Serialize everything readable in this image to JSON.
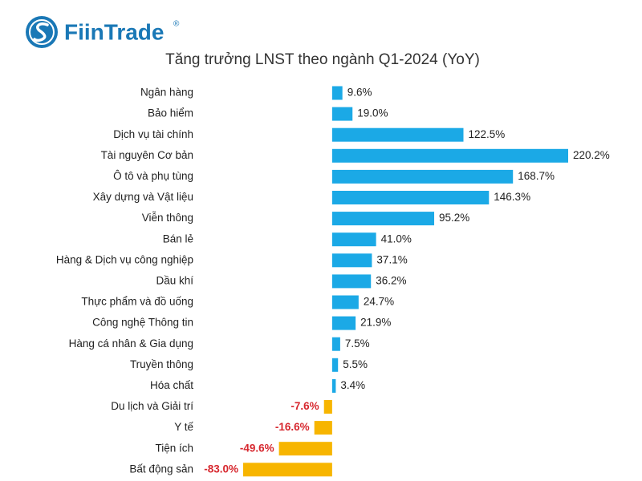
{
  "logo": "FiinTrade",
  "logo_mark": "®",
  "chart_data": {
    "type": "bar",
    "orientation": "horizontal",
    "title": "Tăng trưởng LNST theo ngành Q1-2024 (YoY)",
    "categories": [
      "Ngân hàng",
      "Bảo hiểm",
      "Dịch vụ tài chính",
      "Tài nguyên Cơ bản",
      "Ô tô và phụ tùng",
      "Xây dựng và Vật liệu",
      "Viễn thông",
      "Bán lẻ",
      "Hàng & Dịch vụ công nghiệp",
      "Dầu khí",
      "Thực phẩm và đồ uống",
      "Công nghệ Thông tin",
      "Hàng cá nhân & Gia dụng",
      "Truyền thông",
      "Hóa chất",
      "Du lịch và Giải trí",
      "Y tế",
      "Tiện ích",
      "Bất động sản"
    ],
    "values": [
      9.6,
      19.0,
      122.5,
      220.2,
      168.7,
      146.3,
      95.2,
      41.0,
      37.1,
      36.2,
      24.7,
      21.9,
      7.5,
      5.5,
      3.4,
      -7.6,
      -16.6,
      -49.6,
      -83.0
    ],
    "value_labels": [
      "9.6%",
      "19.0%",
      "122.5%",
      "220.2%",
      "168.7%",
      "146.3%",
      "95.2%",
      "41.0%",
      "37.1%",
      "36.2%",
      "24.7%",
      "21.9%",
      "7.5%",
      "5.5%",
      "3.4%",
      "-7.6%",
      "-16.6%",
      "-49.6%",
      "-83.0%"
    ],
    "positive_color": "#1ba9e6",
    "negative_color": "#f7b500",
    "negative_label_color": "#d7282f"
  }
}
